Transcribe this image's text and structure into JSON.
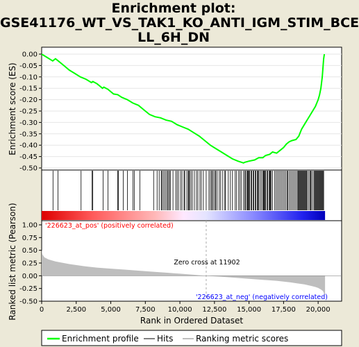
{
  "title_lines": [
    "Enrichment plot:",
    "GSE41176_WT_VS_TAK1_KO_ANTI_IGM_STIM_BCE",
    "LL_6H_DN"
  ],
  "colors": {
    "background": "#ece9d8",
    "enrichment_line": "#00ff00",
    "hits": "#000000",
    "metric_fill": "#bebebe",
    "pos_label": "#ff0000",
    "neg_label": "#0000ff"
  },
  "chart_data": {
    "type": "line",
    "title": "Enrichment plot: GSE41176_WT_VS_TAK1_KO_ANTI_IGM_STIM_BCELL_6H_DN",
    "panels": [
      {
        "name": "enrichment",
        "ylabel": "Enrichment score (ES)",
        "ylim": [
          -0.51,
          0.03
        ],
        "yticks": [
          "0.00",
          "-0.05",
          "-0.10",
          "-0.15",
          "-0.20",
          "-0.25",
          "-0.30",
          "-0.35",
          "-0.40",
          "-0.45",
          "-0.50"
        ],
        "series": [
          {
            "name": "Enrichment profile",
            "x": [
              0,
              400,
              800,
              1000,
              1200,
              1600,
              2000,
              2400,
              2800,
              3200,
              3600,
              3700,
              4000,
              4400,
              4500,
              4800,
              5200,
              5500,
              5800,
              6200,
              6600,
              7000,
              7400,
              7800,
              8200,
              8600,
              9000,
              9400,
              9800,
              10200,
              10600,
              11000,
              11400,
              11800,
              12200,
              12600,
              13000,
              13400,
              13800,
              14200,
              14600,
              14700,
              15000,
              15400,
              15700,
              16000,
              16200,
              16500,
              16700,
              17000,
              17300,
              17500,
              17700,
              17900,
              18100,
              18400,
              18600,
              18800,
              19000,
              19200,
              19400,
              19600,
              19800,
              20000,
              20100,
              20200,
              20300,
              20350,
              20400,
              20450
            ],
            "y": [
              0.0,
              -0.015,
              -0.03,
              -0.02,
              -0.03,
              -0.05,
              -0.07,
              -0.085,
              -0.1,
              -0.11,
              -0.125,
              -0.12,
              -0.13,
              -0.15,
              -0.145,
              -0.155,
              -0.175,
              -0.178,
              -0.19,
              -0.2,
              -0.215,
              -0.225,
              -0.245,
              -0.265,
              -0.275,
              -0.28,
              -0.29,
              -0.295,
              -0.31,
              -0.32,
              -0.33,
              -0.345,
              -0.36,
              -0.38,
              -0.4,
              -0.415,
              -0.43,
              -0.445,
              -0.46,
              -0.47,
              -0.478,
              -0.475,
              -0.47,
              -0.465,
              -0.455,
              -0.455,
              -0.445,
              -0.44,
              -0.43,
              -0.435,
              -0.42,
              -0.41,
              -0.395,
              -0.385,
              -0.38,
              -0.375,
              -0.36,
              -0.33,
              -0.31,
              -0.29,
              -0.27,
              -0.25,
              -0.23,
              -0.2,
              -0.18,
              -0.15,
              -0.1,
              -0.06,
              -0.02,
              0.0
            ]
          }
        ]
      },
      {
        "name": "hits",
        "hit_positions": [
          820,
          1180,
          2850,
          3650,
          3700,
          4450,
          4800,
          5500,
          5550,
          5900,
          6200,
          6600,
          6700,
          7100,
          8100,
          8350,
          8500,
          8650,
          8700,
          8800,
          8900,
          9000,
          9100,
          9150,
          9250,
          9300,
          9500,
          9700,
          9800,
          9900,
          10050,
          10150,
          10300,
          10350,
          10500,
          10600,
          10650,
          10700,
          10800,
          10900,
          11050,
          11200,
          11300,
          11450,
          11550,
          11700,
          11900,
          12100,
          12200,
          12300,
          12350,
          12450,
          12550,
          12600,
          12700,
          12850,
          12950,
          13100,
          13250,
          13300,
          13500,
          13650,
          13800,
          14000,
          14100,
          14250,
          14350,
          14450,
          14600,
          14700,
          14750,
          14850,
          14900,
          14950,
          15000,
          15050,
          15150,
          15200,
          15300,
          15350,
          15450,
          15500,
          15600,
          15650,
          15700,
          15800,
          15900,
          16000,
          16050,
          16100,
          16150,
          16200,
          16300,
          16350,
          16450,
          16500,
          16550,
          16600,
          16700,
          16850,
          16950,
          17050,
          17150,
          17250,
          17350,
          17450,
          17550,
          17650,
          17750,
          17800,
          17900,
          18000,
          18100,
          18200,
          18300,
          18400,
          18500,
          18550,
          18600,
          18650,
          18700,
          18750,
          18800,
          18850,
          18900,
          18950,
          19000,
          19050,
          19100,
          19150,
          19200,
          19300,
          19400,
          19450,
          19500,
          19600,
          19700,
          19750,
          19800,
          19850,
          19900,
          19950,
          20000,
          20050,
          20100,
          20150,
          20200,
          20250,
          20300,
          20350,
          20400
        ]
      },
      {
        "name": "ranked_metric",
        "ylabel": "Ranked list metric (Pearson)",
        "xlabel": "Rank in Ordered Dataset",
        "xlim": [
          0,
          21700
        ],
        "ylim": [
          -0.5,
          1.0
        ],
        "xticks": [
          "0",
          "2,500",
          "5,000",
          "7,500",
          "10,000",
          "12,500",
          "15,000",
          "17,500",
          "20,000"
        ],
        "yticks": [
          "1.00",
          "0.75",
          "0.50",
          "0.25",
          "0.00",
          "-0.25",
          "-0.50"
        ],
        "metric_x": [
          0,
          50,
          200,
          500,
          1000,
          2000,
          3000,
          4000,
          5000,
          6000,
          7000,
          8000,
          9000,
          10000,
          11000,
          11902,
          13000,
          14000,
          15000,
          16000,
          17000,
          18000,
          18500,
          19000,
          19500,
          19800,
          20000,
          20200,
          20350,
          20450,
          20500
        ],
        "metric_y": [
          0.52,
          0.42,
          0.36,
          0.32,
          0.28,
          0.23,
          0.19,
          0.16,
          0.14,
          0.12,
          0.1,
          0.08,
          0.06,
          0.04,
          0.02,
          0.0,
          -0.02,
          -0.04,
          -0.06,
          -0.08,
          -0.1,
          -0.13,
          -0.15,
          -0.17,
          -0.2,
          -0.22,
          -0.24,
          -0.27,
          -0.3,
          -0.36,
          -0.4
        ],
        "zero_cross_rank": 11902,
        "annotations": [
          "Zero cross at 11902",
          "'226623_at_pos' (positively correlated)",
          "'226623_at_neg' (negatively correlated)"
        ]
      }
    ],
    "legend": {
      "placement": "bottom",
      "entries": [
        "Enrichment profile",
        "Hits",
        "Ranking metric scores"
      ]
    }
  }
}
